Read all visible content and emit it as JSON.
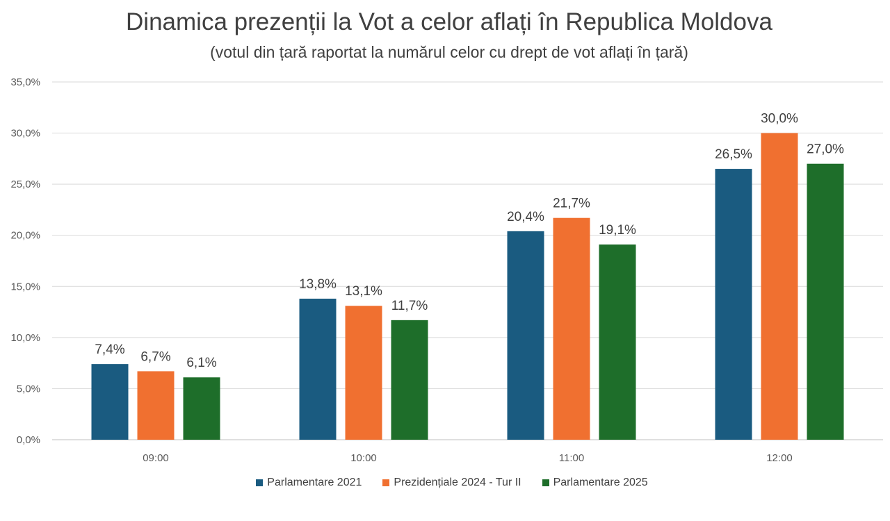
{
  "chart_data": {
    "type": "bar",
    "title": "Dinamica prezenții la Vot a celor aflați în Republica Moldova",
    "subtitle": "(votul din țară raportat la numărul celor cu drept de vot aflați în țară)",
    "categories": [
      "09:00",
      "10:00",
      "11:00",
      "12:00"
    ],
    "series": [
      {
        "name": "Parlamentare 2021",
        "color": "#1a5b80",
        "values": [
          7.4,
          13.8,
          20.4,
          26.5
        ],
        "labels": [
          "7,4%",
          "13,8%",
          "20,4%",
          "26,5%"
        ]
      },
      {
        "name": "Prezidențiale 2024 - Tur II",
        "color": "#f07030",
        "values": [
          6.7,
          13.1,
          21.7,
          30.0
        ],
        "labels": [
          "6,7%",
          "13,1%",
          "21,7%",
          "30,0%"
        ]
      },
      {
        "name": "Parlamentare 2025",
        "color": "#1e6e2a",
        "values": [
          6.1,
          11.7,
          19.1,
          27.0
        ],
        "labels": [
          "6,1%",
          "11,7%",
          "19,1%",
          "27,0%"
        ]
      }
    ],
    "ylim": [
      0,
      35
    ],
    "yticks": [
      "0,0%",
      "5,0%",
      "10,0%",
      "15,0%",
      "20,0%",
      "25,0%",
      "30,0%",
      "35,0%"
    ],
    "grid": true,
    "legend_position": "bottom"
  }
}
